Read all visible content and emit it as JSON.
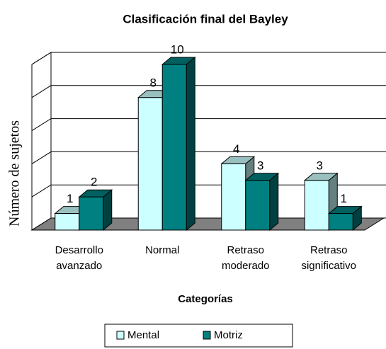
{
  "chart_data": {
    "type": "bar3d",
    "title": "Clasificación final del Bayley",
    "x_label": "Categorías",
    "y_label": "Número de sujetos",
    "categories": [
      "Desarrollo avanzado",
      "Normal",
      "Retraso moderado",
      "Retraso significativo"
    ],
    "series": [
      {
        "name": "Mental",
        "color": "#ccffff",
        "values": [
          1,
          8,
          4,
          3
        ]
      },
      {
        "name": "Motriz",
        "color": "#008080",
        "values": [
          2,
          10,
          3,
          1
        ]
      }
    ],
    "ylim": [
      0,
      10
    ],
    "yticks": [
      0,
      2,
      4,
      6,
      8,
      10
    ],
    "grid": true,
    "legend": "bottom"
  }
}
